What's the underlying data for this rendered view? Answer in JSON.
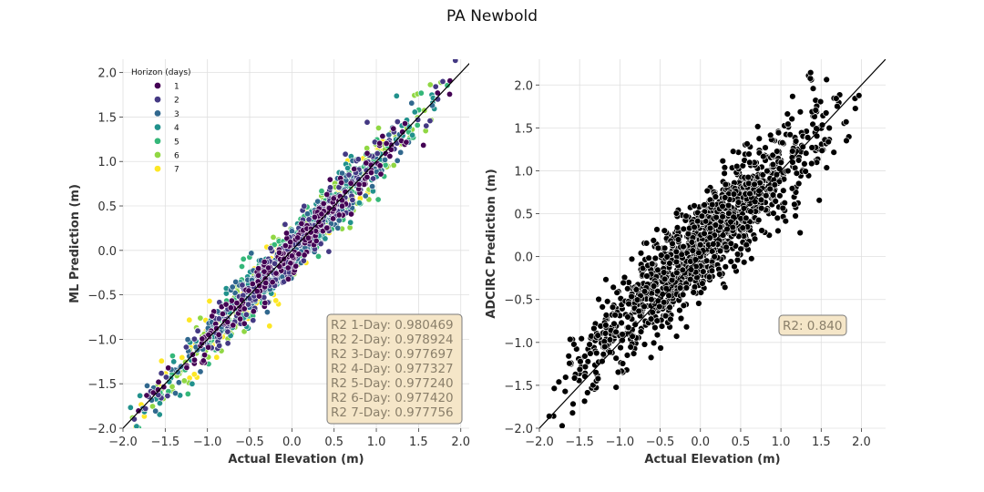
{
  "figure": {
    "suptitle": "PA Newbold"
  },
  "colors": {
    "horizon": [
      "#440154",
      "#443983",
      "#31688e",
      "#21918c",
      "#35b779",
      "#90d743",
      "#fde725"
    ],
    "adcirc_points": "#000000",
    "point_edge": "#ffffff",
    "identity_line": "#000000",
    "grid": "#e0e0e0",
    "annotation_bg": "#f5e6c8",
    "annotation_text": "#8a7f6a"
  },
  "chart_data": [
    {
      "type": "scatter",
      "xlabel": "Actual Elevation (m)",
      "ylabel": "ML Prediction (m)",
      "xlim": [
        -2.0,
        2.1
      ],
      "ylim": [
        -2.0,
        2.15
      ],
      "xticks": [
        -2.0,
        -1.5,
        -1.0,
        -0.5,
        0.0,
        0.5,
        1.0,
        1.5,
        2.0
      ],
      "yticks": [
        -2.0,
        -1.5,
        -1.0,
        -0.5,
        0.0,
        0.5,
        1.0,
        1.5,
        2.0
      ],
      "xtick_labels": [
        "−2.0",
        "−1.5",
        "−1.0",
        "−0.5",
        "0.0",
        "0.5",
        "1.0",
        "1.5",
        "2.0"
      ],
      "ytick_labels": [
        "−2.0",
        "−1.5",
        "−1.0",
        "−0.5",
        "0.0",
        "0.5",
        "1.0",
        "1.5",
        "2.0"
      ],
      "grid": true,
      "identity_line": true,
      "legend": {
        "title": "Horizon (days)",
        "placement": "upper-left",
        "entries": [
          "1",
          "2",
          "3",
          "4",
          "5",
          "6",
          "7"
        ]
      },
      "series": [
        {
          "name": "1",
          "r2": 0.980469,
          "spread": 0.13
        },
        {
          "name": "2",
          "r2": 0.978924,
          "spread": 0.14
        },
        {
          "name": "3",
          "r2": 0.977697,
          "spread": 0.145
        },
        {
          "name": "4",
          "r2": 0.977327,
          "spread": 0.145
        },
        {
          "name": "5",
          "r2": 0.97724,
          "spread": 0.15
        },
        {
          "name": "6",
          "r2": 0.97742,
          "spread": 0.15
        },
        {
          "name": "7",
          "r2": 0.977756,
          "spread": 0.145
        }
      ],
      "actual_range": [
        -1.95,
        1.95
      ],
      "annotation": {
        "placement": "lower-right",
        "lines": [
          "R2 1-Day: 0.980469",
          "R2 2-Day: 0.978924",
          "R2 3-Day: 0.977697",
          "R2 4-Day: 0.977327",
          "R2 5-Day: 0.977240",
          "R2 6-Day: 0.977420",
          "R2 7-Day: 0.977756"
        ]
      }
    },
    {
      "type": "scatter",
      "xlabel": "Actual Elevation (m)",
      "ylabel": "ADCIRC Prediction (m)",
      "xlim": [
        -2.0,
        2.3
      ],
      "ylim": [
        -2.0,
        2.3
      ],
      "xticks": [
        -2.0,
        -1.5,
        -1.0,
        -0.5,
        0.0,
        0.5,
        1.0,
        1.5,
        2.0
      ],
      "yticks": [
        -2.0,
        -1.5,
        -1.0,
        -0.5,
        0.0,
        0.5,
        1.0,
        1.5,
        2.0
      ],
      "xtick_labels": [
        "−2.0",
        "−1.5",
        "−1.0",
        "−0.5",
        "0.0",
        "0.5",
        "1.0",
        "1.5",
        "2.0"
      ],
      "ytick_labels": [
        "−2.0",
        "−1.5",
        "−1.0",
        "−0.5",
        "0.0",
        "0.5",
        "1.0",
        "1.5",
        "2.0"
      ],
      "grid": true,
      "identity_line": true,
      "series": [
        {
          "name": "",
          "r2": 0.84,
          "spread": 0.28
        }
      ],
      "actual_range": [
        -1.95,
        2.05
      ],
      "annotation": {
        "placement": "lower-right",
        "lines": [
          "R2: 0.840"
        ]
      }
    }
  ]
}
